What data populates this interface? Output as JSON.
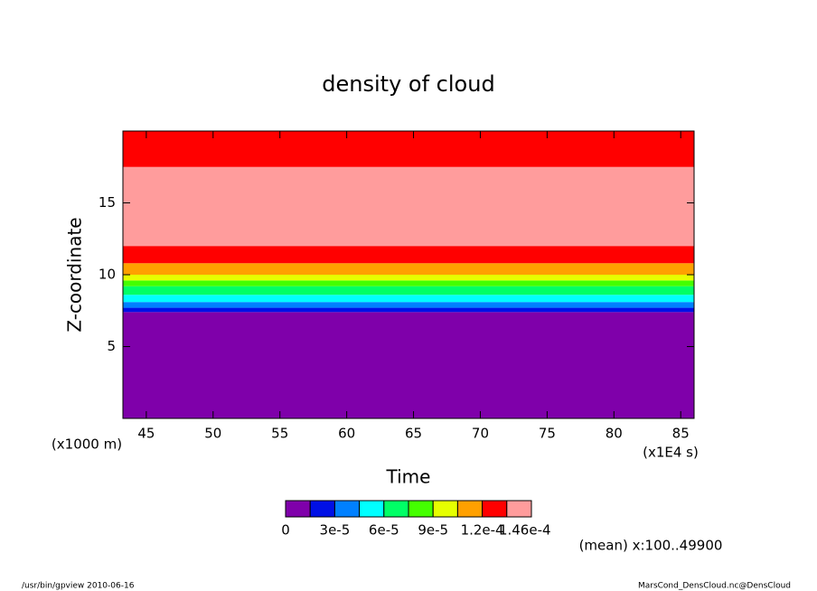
{
  "chart_data": {
    "type": "contour",
    "title": "density of cloud",
    "x_label": "Time",
    "y_label": "Z-coordinate",
    "y_unit": "(x1000 m)",
    "x_unit": "(x1E4 s)",
    "note": "(mean) x:100..49900",
    "footer_left": "/usr/bin/gpview  2010-06-16",
    "footer_right": "MarsCond_DensCloud.nc@DensCloud",
    "xlim": [
      43.25,
      86
    ],
    "ylim": [
      0,
      20
    ],
    "xticks": [
      45,
      50,
      55,
      60,
      65,
      70,
      75,
      80,
      85
    ],
    "yticks": [
      5,
      10,
      15
    ],
    "colors": [
      "#7f00aa",
      "#0010e6",
      "#0080ff",
      "#00ffff",
      "#00ff66",
      "#44ff00",
      "#e6ff00",
      "#ffa000",
      "#ff0000",
      "#ff9c9c"
    ],
    "clim": [
      0,
      0.00015
    ],
    "cticks": [
      0,
      {
        "value": 3e-05,
        "label": "3e-5"
      },
      {
        "value": 6e-05,
        "label": "6e-5"
      },
      {
        "value": 9e-05,
        "label": "9e-5"
      },
      {
        "value": 0.00012,
        "label": "1.2e-4"
      },
      {
        "value": 0.000146,
        "label": "1.46e-4"
      }
    ],
    "bands": [
      {
        "z": [
          0,
          7.4
        ],
        "level": 0
      },
      {
        "z": [
          7.4,
          7.7
        ],
        "level": 1
      },
      {
        "z": [
          7.7,
          8.1
        ],
        "level": 2
      },
      {
        "z": [
          8.1,
          8.6
        ],
        "level": 3
      },
      {
        "z": [
          8.6,
          9.2
        ],
        "level": 4
      },
      {
        "z": [
          9.2,
          9.6
        ],
        "level": 5
      },
      {
        "z": [
          9.6,
          10.0
        ],
        "level": 6
      },
      {
        "z": [
          10.0,
          10.8
        ],
        "level": 7
      },
      {
        "z": [
          10.8,
          12.0
        ],
        "level": 8
      },
      {
        "z": [
          12.0,
          17.5
        ],
        "level": 9
      },
      {
        "z": [
          17.5,
          20
        ],
        "level": 8
      }
    ]
  }
}
